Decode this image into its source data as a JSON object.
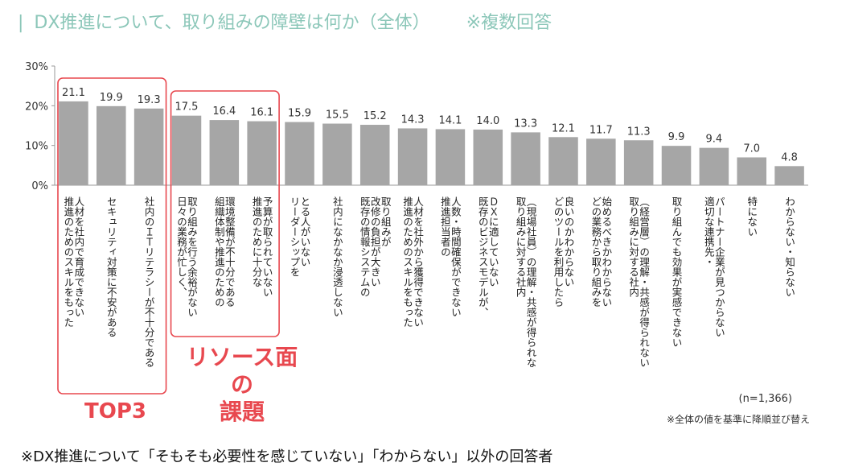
{
  "title": "DX推進について、取り組みの障壁は何か（全体）",
  "title_note": "※複数回答",
  "chart_data": {
    "type": "bar",
    "ylim": [
      0,
      30
    ],
    "yticks": [
      "0%",
      "10%",
      "20%",
      "30%"
    ],
    "categories": [
      "人材を社内で育成できない",
      "推進のためのスキルをもった",
      "セキュリティ対策に不安がある",
      "社内のＩＴリテラシーが不十分である",
      "取り組みを行う余裕がない",
      "日々の業務が忙しく、",
      "環境整備が不十分である",
      "組織体制や推進のための",
      "予算が取られていない",
      "推進のために十分な",
      "とる人がいない",
      "リーダーシップを",
      "社内になかなか浸透しない",
      "取り組みが",
      "改修の負担が大きい",
      "既存の情報システムの",
      "人材を社外から獲得できない",
      "推進のためのスキルをもった",
      "人数・時間確保ができない",
      "推進担当者の",
      "ＤＸに適していない",
      "既存のビジネスモデルが、",
      "（現場社員）の理解・共感が得られな",
      "取り組みに対する社内",
      "良いのかわからない",
      "どのツールを利用したら",
      "始めるべきかわからない",
      "どの業務から取り組みを",
      "（経営層）の理解・共感が得られない",
      "取り組みに対する社内",
      "取り組んでも効果が実感できない",
      "パートナー企業が見つからない",
      "適切な連携先・",
      "特にない",
      "わからない・知らない"
    ],
    "bars": [
      {
        "value": 21.1,
        "label": "21.1",
        "lines": [
          "人材を社内で育成できない",
          "推進のためのスキルをもった"
        ]
      },
      {
        "value": 19.9,
        "label": "19.9",
        "lines": [
          "セキュリティ対策に不安がある"
        ]
      },
      {
        "value": 19.3,
        "label": "19.3",
        "lines": [
          "社内のＩＴリテラシーが不十分である"
        ]
      },
      {
        "value": 17.5,
        "label": "17.5",
        "lines": [
          "取り組みを行う余裕がない",
          "日々の業務が忙しく、"
        ]
      },
      {
        "value": 16.4,
        "label": "16.4",
        "lines": [
          "環境整備が不十分である",
          "組織体制や推進のための"
        ]
      },
      {
        "value": 16.1,
        "label": "16.1",
        "lines": [
          "予算が取られていない",
          "推進のために十分な"
        ]
      },
      {
        "value": 15.9,
        "label": "15.9",
        "lines": [
          "とる人がいない",
          "リーダーシップを"
        ]
      },
      {
        "value": 15.5,
        "label": "15.5",
        "lines": [
          "社内になかなか浸透しない"
        ]
      },
      {
        "value": 15.2,
        "label": "15.2",
        "lines": [
          "取り組みが",
          "改修の負担が大きい",
          "既存の情報システムの"
        ]
      },
      {
        "value": 14.3,
        "label": "14.3",
        "lines": [
          "人材を社外から獲得できない",
          "推進のためのスキルをもった"
        ]
      },
      {
        "value": 14.1,
        "label": "14.1",
        "lines": [
          "人数・時間確保ができない",
          "推進担当者の"
        ]
      },
      {
        "value": 14.0,
        "label": "14.0",
        "lines": [
          "ＤＸに適していない",
          "既存のビジネスモデルが、"
        ]
      },
      {
        "value": 13.3,
        "label": "13.3",
        "lines": [
          "（現場社員）の理解・共感が得られな",
          "取り組みに対する社内"
        ]
      },
      {
        "value": 12.1,
        "label": "12.1",
        "lines": [
          "良いのかわからない",
          "どのツールを利用したら"
        ]
      },
      {
        "value": 11.7,
        "label": "11.7",
        "lines": [
          "始めるべきかわからない",
          "どの業務から取り組みを"
        ]
      },
      {
        "value": 11.3,
        "label": "11.3",
        "lines": [
          "（経営層）の理解・共感が得られない",
          "取り組みに対する社内"
        ]
      },
      {
        "value": 9.9,
        "label": "9.9",
        "lines": [
          "取り組んでも効果が実感できない"
        ]
      },
      {
        "value": 9.4,
        "label": "9.4",
        "lines": [
          "パートナー企業が見つからない",
          "適切な連携先・"
        ]
      },
      {
        "value": 7.0,
        "label": "7.0",
        "lines": [
          "特にない"
        ]
      },
      {
        "value": 4.8,
        "label": "4.8",
        "lines": [
          "わからない・知らない"
        ]
      }
    ],
    "bar_color": "#a6a6a6",
    "highlight_color": "#e8484f",
    "highlight_groups": [
      {
        "label": "TOP3",
        "bars": [
          0,
          1,
          2
        ]
      },
      {
        "label": "リソース面の課題",
        "bars": [
          3,
          4,
          5
        ]
      }
    ]
  },
  "annotations": {
    "resource_label_line1": "リソース面の",
    "resource_label_line2": "課題",
    "top3_label": "TOP3",
    "n_label": "(n=1,366)",
    "sort_note": "※全体の値を基準に降順並び替え"
  },
  "footnote": "※DX推進について「そもそも必要性を感じていない」「わからない」以外の回答者"
}
